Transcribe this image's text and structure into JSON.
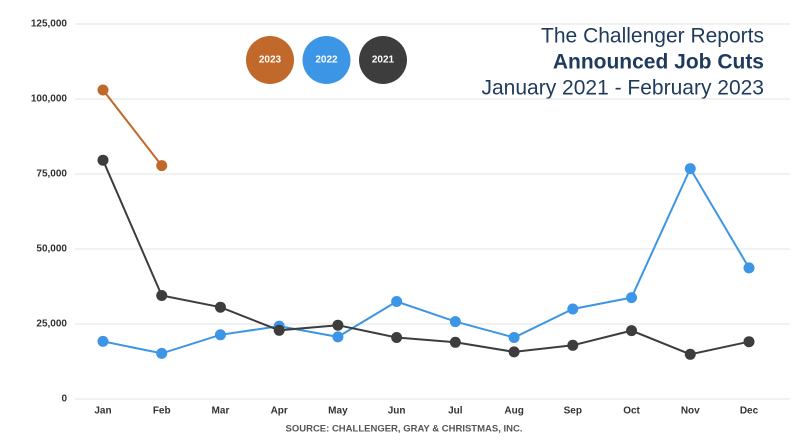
{
  "chart_data": {
    "type": "line",
    "header": "The Challenger Reports",
    "title": "Announced Job Cuts",
    "subtitle": "January 2021 - February 2023",
    "source": "SOURCE: CHALLENGER, GRAY & CHRISTMAS, INC.",
    "categories": [
      "Jan",
      "Feb",
      "Mar",
      "Apr",
      "May",
      "Jun",
      "Jul",
      "Aug",
      "Sep",
      "Oct",
      "Nov",
      "Dec"
    ],
    "series": [
      {
        "name": "2023",
        "color": "#c0692a",
        "values": [
          103000,
          77800,
          null,
          null,
          null,
          null,
          null,
          null,
          null,
          null,
          null,
          null
        ]
      },
      {
        "name": "2022",
        "color": "#3d95e6",
        "values": [
          19200,
          15200,
          21400,
          24300,
          20700,
          32500,
          25800,
          20500,
          30000,
          33800,
          76800,
          43700
        ]
      },
      {
        "name": "2021",
        "color": "#3d3d3d",
        "values": [
          79600,
          34500,
          30600,
          22900,
          24600,
          20500,
          18900,
          15700,
          17900,
          22800,
          14900,
          19100
        ]
      }
    ],
    "ylim": [
      0,
      125000
    ],
    "yticks": [
      0,
      {
        "value": 25000,
        "label": "25,000"
      },
      {
        "value": 50000,
        "label": "50,000"
      },
      {
        "value": 75000,
        "label": "75,000"
      },
      {
        "value": 100000,
        "label": "100,000"
      },
      {
        "value": 125000,
        "label": "125,000"
      }
    ],
    "grid": true
  }
}
